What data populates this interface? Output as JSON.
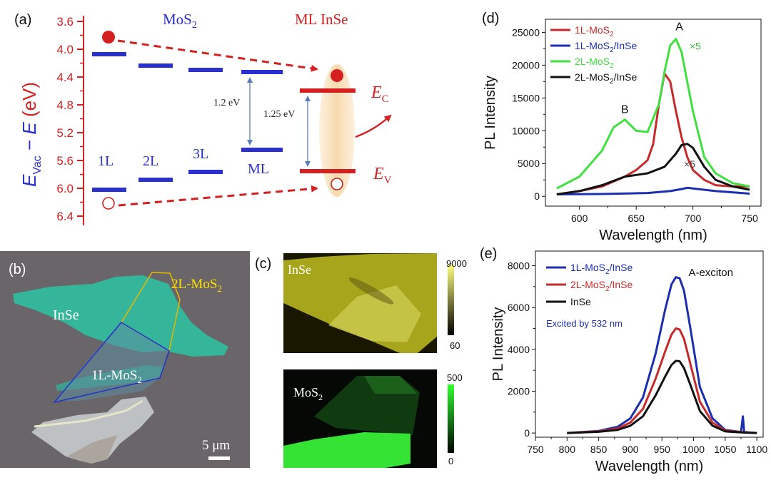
{
  "colors": {
    "band_blue": "#2a2fd0",
    "red": "#d42020",
    "inse_glow": "#f7dcb4",
    "green": "#3fe03f",
    "black": "#111111",
    "navy": "#1c2fb0"
  },
  "panel_a": {
    "label": "(a)",
    "ylabel_parts": [
      "E",
      "Vac",
      " − ",
      "E",
      " (eV)"
    ],
    "yticks": [
      "3.6",
      "4.0",
      "4.4",
      "4.8",
      "5.2",
      "5.6",
      "6.0",
      "6.4"
    ],
    "header_mos2": "MoS",
    "header_mos2_sub": "2",
    "header_inse": "ML InSe",
    "layer_labels": [
      "1L",
      "2L",
      "3L",
      "ML"
    ],
    "gap_mos2": "1.2 eV",
    "gap_inse": "1.25 eV",
    "ec_label": "E",
    "ec_sub": "C",
    "ev_label": "E",
    "ev_sub": "V"
  },
  "panel_b": {
    "label": "(b)",
    "inse_label": "InSe",
    "label_2l": "2L-MoS",
    "label_2l_sub": "2",
    "label_1l": "1L-MoS",
    "label_1l_sub": "2",
    "scale": "5 μm"
  },
  "panel_c": {
    "label": "(c)",
    "map1_label": "InSe",
    "map1_max": "9000",
    "map1_min": "60",
    "map2_label": "MoS",
    "map2_label_sub": "2",
    "map2_max": "500",
    "map2_min": "0"
  },
  "chart_data": [
    {
      "panel": "(d)",
      "type": "line",
      "xlabel": "Wavelength (nm)",
      "ylabel": "PL Intensity",
      "xlim": [
        570,
        760
      ],
      "ylim": [
        -1500,
        27000
      ],
      "xticks": [
        600,
        650,
        700,
        750
      ],
      "yticks": [
        0,
        5000,
        10000,
        15000,
        20000,
        25000
      ],
      "legend": [
        "1L-MoS2",
        "1L-MoS2/InSe",
        "2L-MoS2",
        "2L-MoS2/InSe"
      ],
      "annotations": [
        "A",
        "B",
        "×5",
        "×5"
      ],
      "series": [
        {
          "name": "1L-MoS2",
          "color": "#c62a2a",
          "x": [
            580,
            600,
            620,
            640,
            650,
            660,
            665,
            670,
            675,
            680,
            685,
            690,
            695,
            700,
            710,
            720,
            735,
            750
          ],
          "y": [
            300,
            800,
            1500,
            3000,
            4000,
            5500,
            8000,
            14000,
            18700,
            17500,
            13000,
            9000,
            6000,
            4000,
            2500,
            1700,
            1500,
            1500
          ]
        },
        {
          "name": "1L-MoS2/InSe",
          "color": "#1c2fb0",
          "x": [
            580,
            620,
            660,
            680,
            690,
            695,
            700,
            720,
            750
          ],
          "y": [
            300,
            350,
            500,
            800,
            1100,
            1300,
            1200,
            800,
            400
          ]
        },
        {
          "name": "2L-MoS2",
          "color": "#3fe03f",
          "x": [
            580,
            600,
            620,
            630,
            640,
            650,
            660,
            670,
            675,
            680,
            685,
            690,
            700,
            710,
            720,
            735,
            750
          ],
          "y": [
            1200,
            3000,
            7000,
            10500,
            11700,
            10000,
            9800,
            14000,
            19000,
            23000,
            24000,
            22000,
            13000,
            6000,
            3500,
            2000,
            1500
          ]
        },
        {
          "name": "2L-MoS2/InSe",
          "color": "#111111",
          "x": [
            580,
            600,
            620,
            640,
            660,
            675,
            685,
            690,
            695,
            700,
            710,
            720,
            735,
            750
          ],
          "y": [
            300,
            800,
            1700,
            3000,
            3500,
            4500,
            6500,
            7800,
            8000,
            7400,
            4500,
            2500,
            1500,
            1000
          ]
        }
      ]
    },
    {
      "panel": "(e)",
      "type": "line",
      "xlabel": "Wavelength (nm)",
      "ylabel": "PL Intensity",
      "xlim": [
        750,
        1110
      ],
      "ylim": [
        -200,
        8700
      ],
      "xticks": [
        750,
        800,
        850,
        900,
        950,
        1000,
        1050,
        1100
      ],
      "yticks": [
        0,
        2000,
        4000,
        6000,
        8000
      ],
      "legend": [
        "1L-MoS2/InSe",
        "2L-MoS2/InSe",
        "InSe"
      ],
      "annotations": [
        "A-exciton",
        "Excited by 532 nm"
      ],
      "series": [
        {
          "name": "1L-MoS2/InSe",
          "color": "#1c2fb0",
          "x": [
            800,
            850,
            880,
            900,
            920,
            940,
            955,
            965,
            972,
            978,
            985,
            995,
            1010,
            1030,
            1050,
            1075,
            1078,
            1080,
            1100
          ],
          "y": [
            0,
            100,
            300,
            700,
            1700,
            3800,
            5900,
            7100,
            7450,
            7400,
            6800,
            5000,
            2200,
            700,
            150,
            50,
            800,
            50,
            0
          ]
        },
        {
          "name": "2L-MoS2/InSe",
          "color": "#c62a2a",
          "x": [
            800,
            850,
            880,
            900,
            920,
            940,
            955,
            965,
            972,
            978,
            985,
            995,
            1010,
            1030,
            1050,
            1080,
            1100
          ],
          "y": [
            0,
            80,
            220,
            500,
            1150,
            2600,
            3900,
            4700,
            5000,
            4950,
            4500,
            3300,
            1500,
            500,
            120,
            30,
            0
          ]
        },
        {
          "name": "InSe",
          "color": "#111111",
          "x": [
            800,
            850,
            880,
            900,
            920,
            940,
            955,
            965,
            972,
            978,
            985,
            995,
            1010,
            1030,
            1050,
            1080,
            1100
          ],
          "y": [
            0,
            60,
            150,
            350,
            800,
            1800,
            2700,
            3250,
            3450,
            3430,
            3100,
            2300,
            1050,
            350,
            80,
            20,
            0
          ]
        }
      ]
    }
  ]
}
